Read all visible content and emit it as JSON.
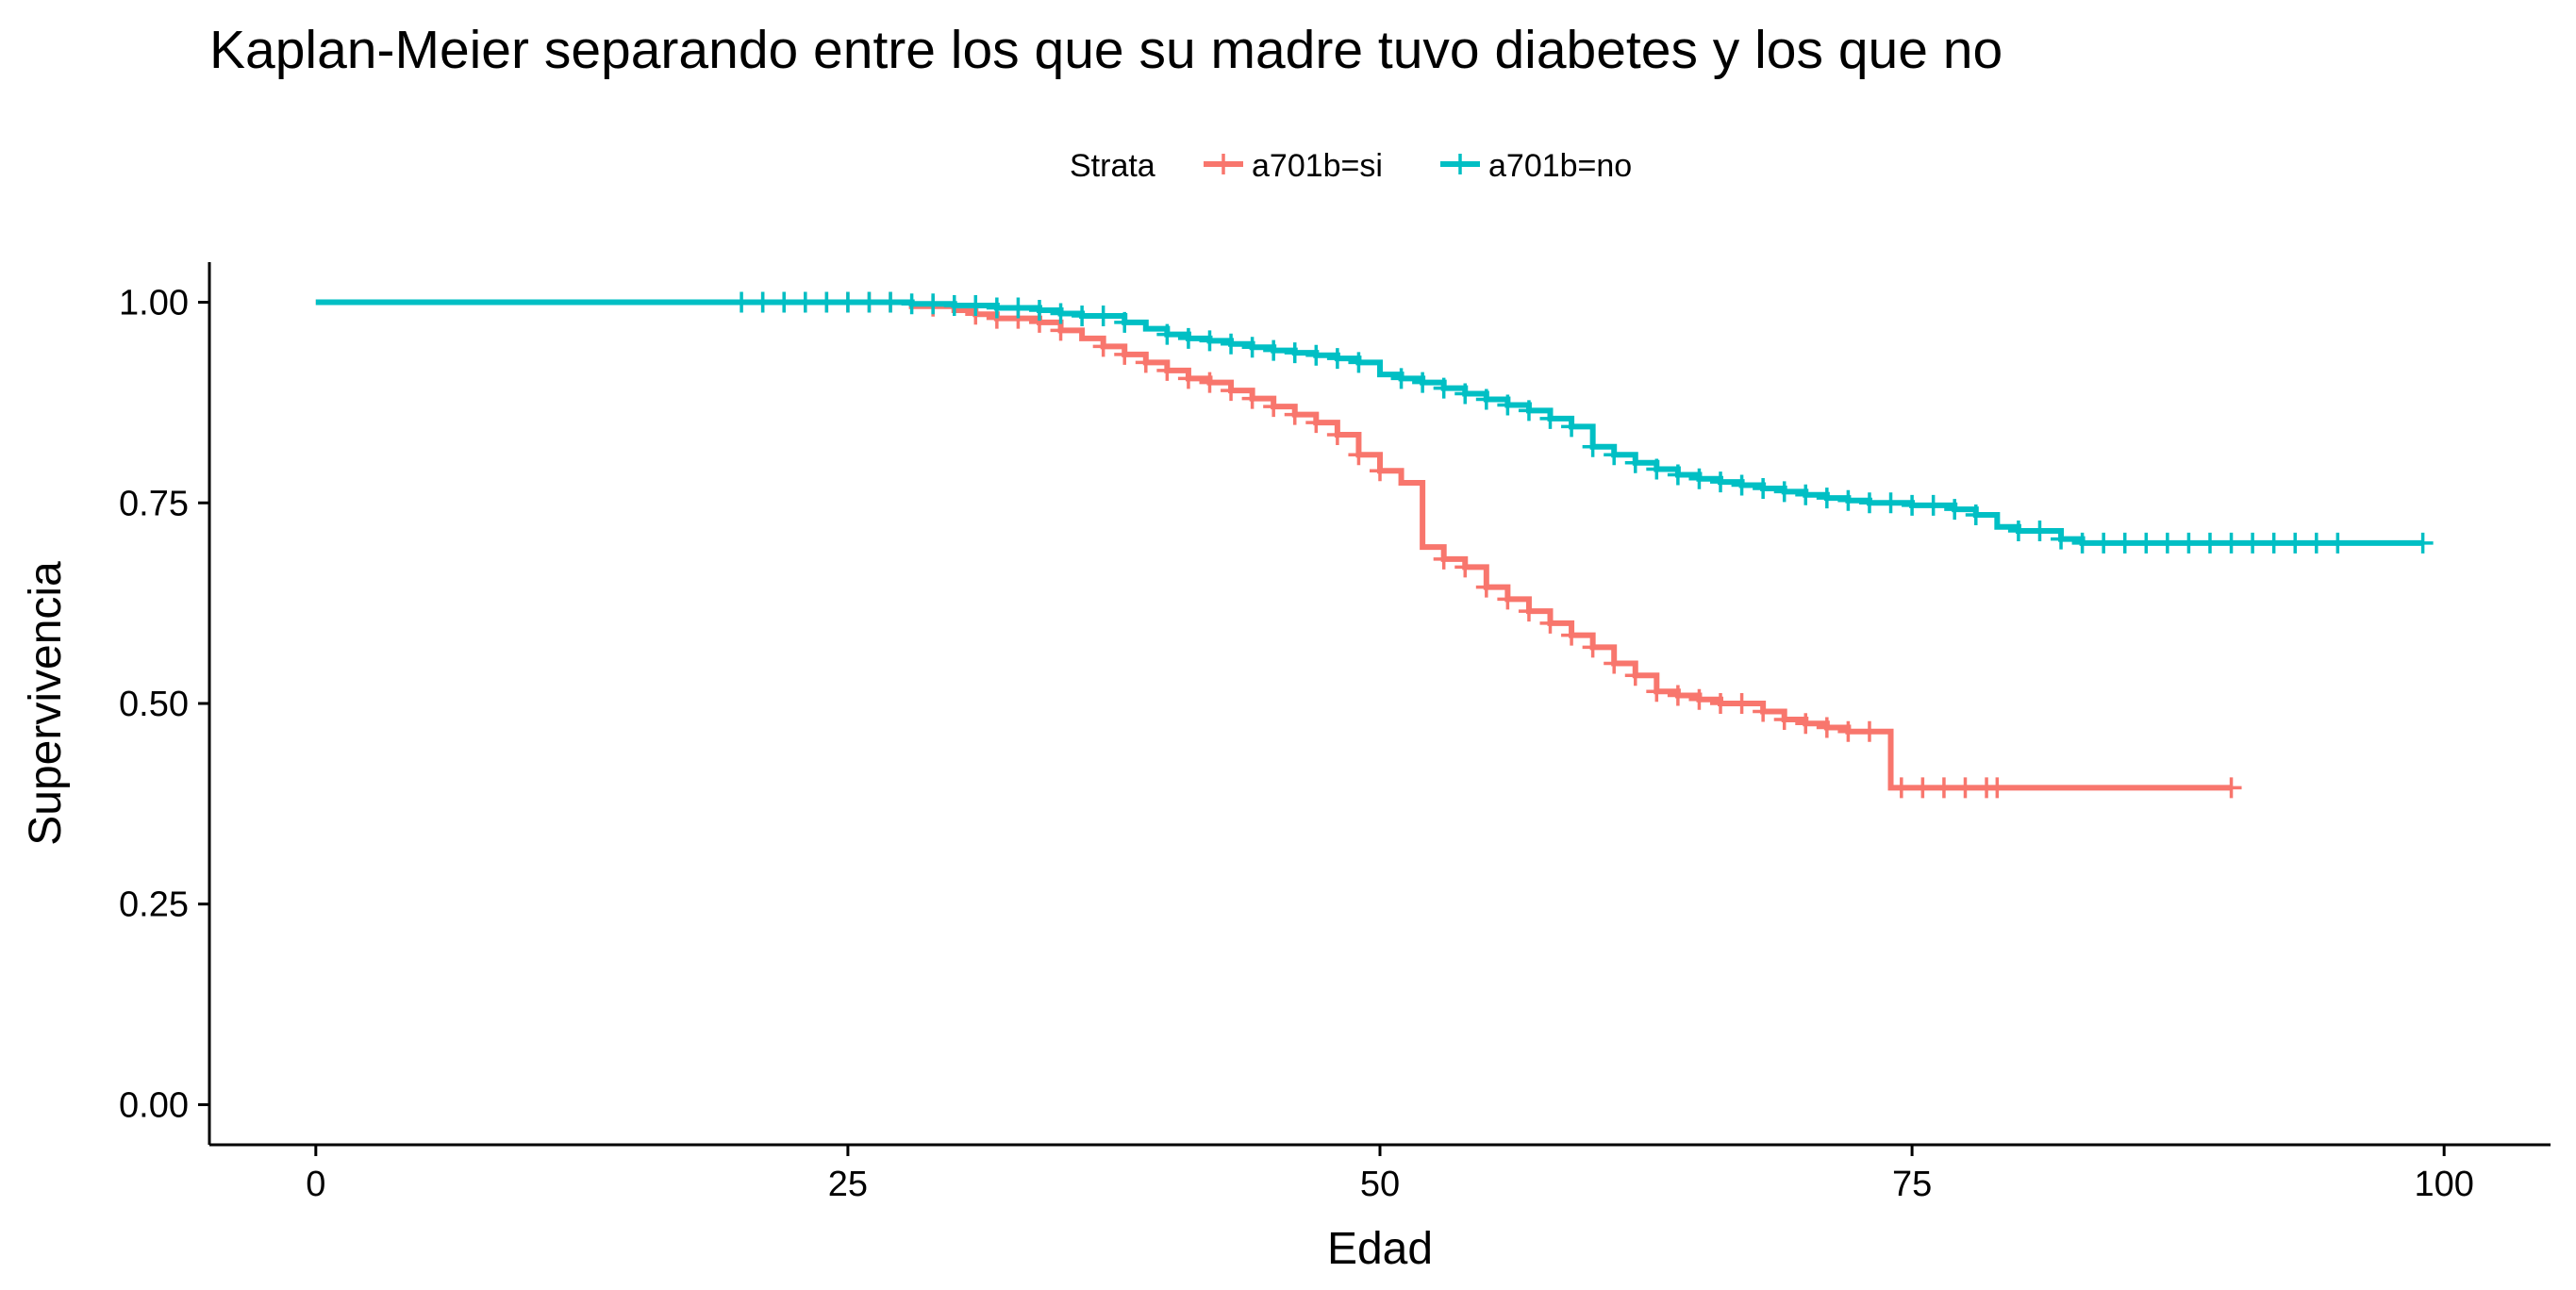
{
  "chart_data": {
    "type": "line",
    "subtype": "kaplan-meier-step",
    "title": "Kaplan-Meier separando entre los que su madre tuvo diabetes y los que no",
    "xlabel": "Edad",
    "ylabel": "Supervivencia",
    "xlim": [
      -5,
      105
    ],
    "ylim": [
      -0.05,
      1.05
    ],
    "x_ticks": [
      0,
      25,
      50,
      75,
      100
    ],
    "x_tick_labels": [
      "0",
      "25",
      "50",
      "75",
      "100"
    ],
    "y_ticks": [
      0,
      0.25,
      0.5,
      0.75,
      1
    ],
    "y_tick_labels": [
      "0.00",
      "0.25",
      "0.50",
      "0.75",
      "1.00"
    ],
    "grid": false,
    "legend": {
      "title": "Strata",
      "placement": "top"
    },
    "series": [
      {
        "name": "a701b=si",
        "color": "#F8766D",
        "steps": [
          [
            0,
            1.0
          ],
          [
            28,
            0.995
          ],
          [
            30,
            0.99
          ],
          [
            31,
            0.985
          ],
          [
            32,
            0.98
          ],
          [
            34,
            0.975
          ],
          [
            35,
            0.965
          ],
          [
            36,
            0.955
          ],
          [
            37,
            0.945
          ],
          [
            38,
            0.935
          ],
          [
            39,
            0.925
          ],
          [
            40,
            0.915
          ],
          [
            41,
            0.905
          ],
          [
            42,
            0.9
          ],
          [
            43,
            0.89
          ],
          [
            44,
            0.88
          ],
          [
            45,
            0.87
          ],
          [
            46,
            0.86
          ],
          [
            47,
            0.85
          ],
          [
            48,
            0.835
          ],
          [
            49,
            0.81
          ],
          [
            50,
            0.79
          ],
          [
            51,
            0.775
          ],
          [
            52,
            0.695
          ],
          [
            53,
            0.68
          ],
          [
            54,
            0.67
          ],
          [
            55,
            0.645
          ],
          [
            56,
            0.63
          ],
          [
            57,
            0.615
          ],
          [
            58,
            0.6
          ],
          [
            59,
            0.585
          ],
          [
            60,
            0.57
          ],
          [
            61,
            0.55
          ],
          [
            62,
            0.535
          ],
          [
            63,
            0.515
          ],
          [
            64,
            0.51
          ],
          [
            65,
            0.505
          ],
          [
            66,
            0.5
          ],
          [
            68,
            0.49
          ],
          [
            69,
            0.48
          ],
          [
            70,
            0.475
          ],
          [
            71,
            0.47
          ],
          [
            72,
            0.465
          ],
          [
            74,
            0.395
          ]
        ],
        "end_x": 90,
        "censor_x": [
          21,
          22,
          23,
          24,
          25,
          26,
          27,
          29,
          31,
          32,
          33,
          34,
          35,
          37,
          38,
          39,
          40,
          41,
          42,
          43,
          44,
          45,
          46,
          47,
          48,
          49,
          50,
          53,
          54,
          55,
          56,
          57,
          58,
          59,
          60,
          61,
          62,
          63,
          64,
          65,
          66,
          67,
          68,
          69,
          70,
          71,
          72,
          73,
          74.5,
          75.5,
          76.5,
          77.5,
          78.5,
          79,
          90
        ]
      },
      {
        "name": "a701b=no",
        "color": "#00BFC4",
        "steps": [
          [
            0,
            1.0
          ],
          [
            28,
            0.998
          ],
          [
            30,
            0.996
          ],
          [
            32,
            0.993
          ],
          [
            34,
            0.99
          ],
          [
            35,
            0.986
          ],
          [
            36,
            0.983
          ],
          [
            38,
            0.975
          ],
          [
            39,
            0.967
          ],
          [
            40,
            0.96
          ],
          [
            41,
            0.955
          ],
          [
            42,
            0.952
          ],
          [
            43,
            0.948
          ],
          [
            44,
            0.944
          ],
          [
            45,
            0.94
          ],
          [
            46,
            0.937
          ],
          [
            47,
            0.934
          ],
          [
            48,
            0.93
          ],
          [
            49,
            0.925
          ],
          [
            50,
            0.91
          ],
          [
            51,
            0.905
          ],
          [
            52,
            0.9
          ],
          [
            53,
            0.893
          ],
          [
            54,
            0.886
          ],
          [
            55,
            0.879
          ],
          [
            56,
            0.872
          ],
          [
            57,
            0.865
          ],
          [
            58,
            0.855
          ],
          [
            59,
            0.845
          ],
          [
            60,
            0.82
          ],
          [
            61,
            0.81
          ],
          [
            62,
            0.8
          ],
          [
            63,
            0.792
          ],
          [
            64,
            0.785
          ],
          [
            65,
            0.78
          ],
          [
            66,
            0.776
          ],
          [
            67,
            0.772
          ],
          [
            68,
            0.768
          ],
          [
            69,
            0.764
          ],
          [
            70,
            0.76
          ],
          [
            71,
            0.756
          ],
          [
            72,
            0.753
          ],
          [
            73,
            0.75
          ],
          [
            75,
            0.747
          ],
          [
            77,
            0.742
          ],
          [
            78,
            0.735
          ],
          [
            79,
            0.72
          ],
          [
            80,
            0.715
          ],
          [
            82,
            0.705
          ],
          [
            83,
            0.7
          ]
        ],
        "end_x": 99,
        "censor_x": [
          20,
          21,
          22,
          23,
          24,
          25,
          26,
          27,
          28,
          29,
          30,
          31,
          32,
          33,
          34,
          35,
          36,
          37,
          38,
          40,
          41,
          42,
          43,
          44,
          45,
          46,
          47,
          48,
          49,
          51,
          52,
          53,
          54,
          55,
          56,
          57,
          58,
          59,
          60,
          61,
          62,
          63,
          64,
          65,
          66,
          67,
          68,
          69,
          70,
          71,
          72,
          73,
          74,
          75,
          76,
          77,
          78,
          80,
          81,
          82,
          83,
          84,
          85,
          86,
          87,
          88,
          89,
          90,
          91,
          92,
          93,
          94,
          95,
          99
        ]
      }
    ]
  }
}
